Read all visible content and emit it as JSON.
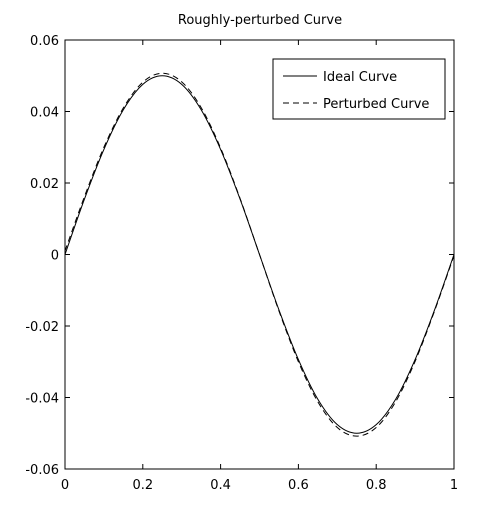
{
  "chart_data": {
    "type": "line",
    "title": "Roughly-perturbed Curve",
    "xlabel": "",
    "ylabel": "",
    "xlim": [
      0,
      1
    ],
    "ylim": [
      -0.06,
      0.06
    ],
    "grid": false,
    "legend_position": "top-right",
    "x_ticks": [
      0,
      0.2,
      0.4,
      0.6,
      0.8,
      1
    ],
    "x_tick_labels": [
      "0",
      "0.2",
      "0.4",
      "0.6",
      "0.8",
      "1"
    ],
    "y_ticks": [
      -0.06,
      -0.04,
      -0.02,
      0,
      0.02,
      0.04,
      0.06
    ],
    "y_tick_labels": [
      "-0.06",
      "-0.04",
      "-0.02",
      "0",
      "0.02",
      "0.04",
      "0.06"
    ],
    "x": [
      0,
      0.05,
      0.1,
      0.15,
      0.2,
      0.25,
      0.3,
      0.35,
      0.4,
      0.45,
      0.5,
      0.55,
      0.6,
      0.65,
      0.7,
      0.75,
      0.8,
      0.85,
      0.9,
      0.95,
      1
    ],
    "series": [
      {
        "name": "Ideal Curve",
        "style": "solid",
        "color": "#000000",
        "values": [
          0,
          0.0155,
          0.0294,
          0.0405,
          0.0476,
          0.05,
          0.0476,
          0.0405,
          0.0294,
          0.0155,
          0,
          -0.0155,
          -0.0294,
          -0.0405,
          -0.0476,
          -0.05,
          -0.0476,
          -0.0405,
          -0.0294,
          -0.0155,
          0
        ]
      },
      {
        "name": "Perturbed Curve",
        "style": "dashed",
        "color": "#000000",
        "values": [
          0.001,
          0.0162,
          0.03,
          0.041,
          0.0482,
          0.0507,
          0.0483,
          0.0411,
          0.0298,
          0.0157,
          0,
          -0.0158,
          -0.03,
          -0.0412,
          -0.0484,
          -0.0508,
          -0.0484,
          -0.0412,
          -0.0299,
          -0.0158,
          -0.0003
        ]
      }
    ]
  }
}
